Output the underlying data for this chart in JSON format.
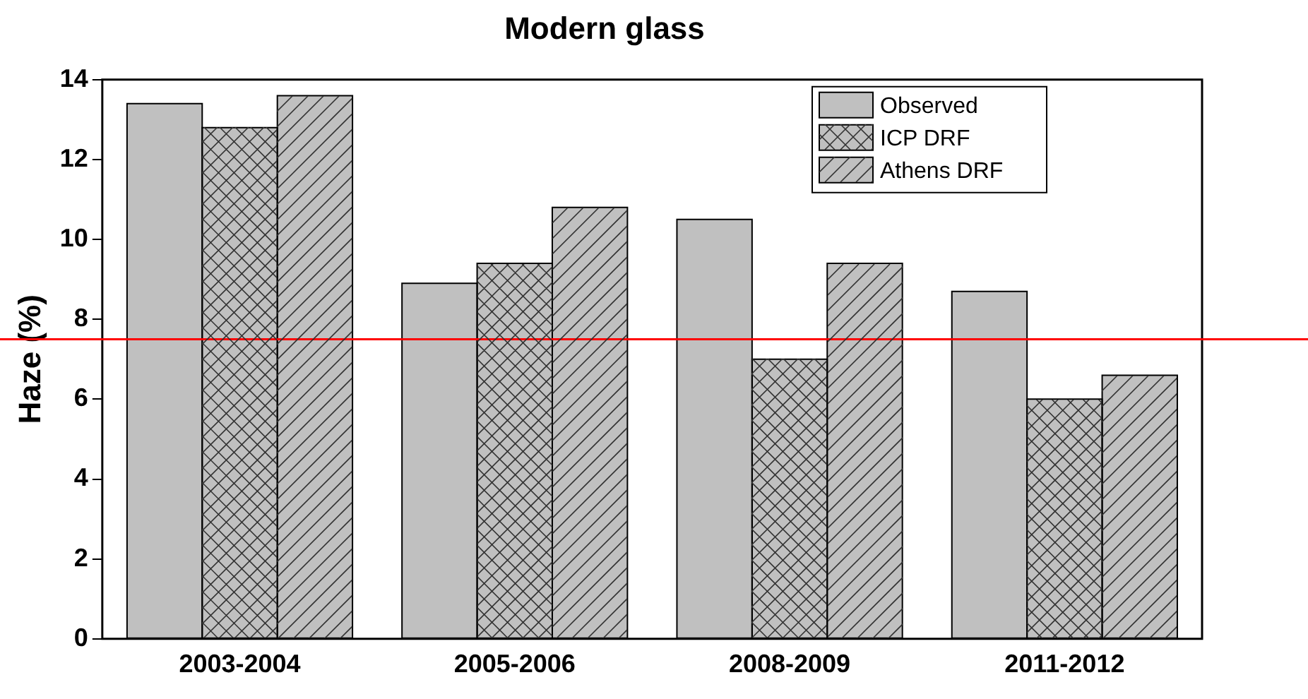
{
  "chart_data": {
    "type": "bar",
    "title": "Modern glass",
    "ylabel": "Haze (%)",
    "categories": [
      "2003-2004",
      "2005-2006",
      "2008-2009",
      "2011-2012"
    ],
    "series": [
      {
        "name": "Observed",
        "color": "#c0c0c0",
        "values": [
          13.4,
          8.9,
          10.5,
          8.7
        ]
      },
      {
        "name": "ICP DRF",
        "color": "#c0c0c0",
        "values": [
          12.8,
          9.4,
          7.0,
          6.0
        ]
      },
      {
        "name": "Athens DRF",
        "color": "#c0c0c0",
        "values": [
          13.6,
          10.8,
          9.4,
          6.6
        ]
      }
    ],
    "ylim": [
      0,
      14
    ],
    "yticks": [
      0,
      2,
      4,
      6,
      8,
      10,
      12,
      14
    ],
    "grid": false,
    "legend": "top right",
    "ref_lines": [
      {
        "axis": "y",
        "value": 7.5,
        "color": "#ff0000"
      }
    ]
  }
}
